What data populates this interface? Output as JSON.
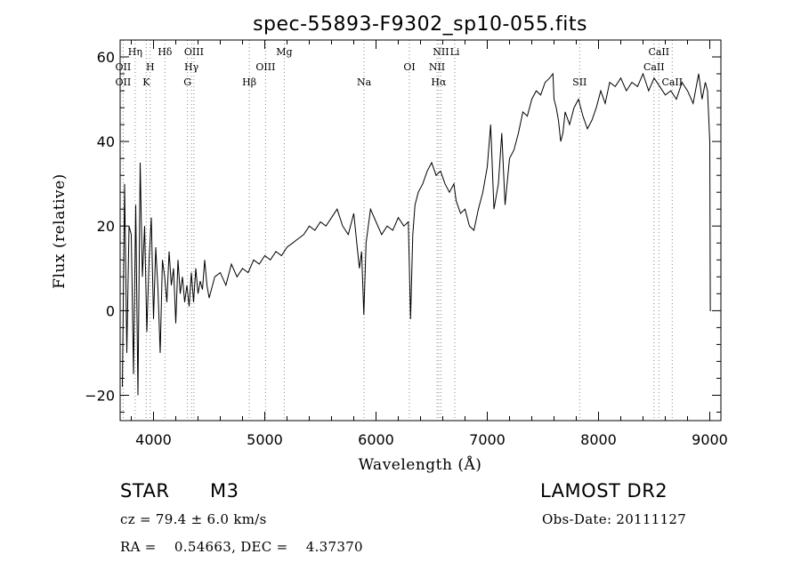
{
  "chart_data": {
    "type": "line",
    "title": "spec-55893-F9302_sp10-055.fits",
    "xlabel": "Wavelength (Å)",
    "ylabel": "Flux (relative)",
    "xlim": [
      3700,
      9100
    ],
    "ylim": [
      -26,
      64
    ],
    "xticks": [
      4000,
      5000,
      6000,
      7000,
      8000,
      9000
    ],
    "yticks": [
      -20,
      0,
      20,
      40,
      60
    ],
    "grid": false,
    "line_color": "#000000",
    "marker_color": "#888888",
    "lines": [
      {
        "label": "OII",
        "x": 3727,
        "row": 2
      },
      {
        "label": "OII",
        "x": 3727,
        "row": 3
      },
      {
        "label": "Hη",
        "x": 3835,
        "row": 1
      },
      {
        "label": "H",
        "x": 3970,
        "row": 2
      },
      {
        "label": "K",
        "x": 3934,
        "row": 3
      },
      {
        "label": "Hδ",
        "x": 4102,
        "row": 1
      },
      {
        "label": "OIII",
        "x": 4363,
        "row": 1
      },
      {
        "label": "Hγ",
        "x": 4341,
        "row": 2
      },
      {
        "label": "G",
        "x": 4305,
        "row": 3
      },
      {
        "label": "Mg",
        "x": 5175,
        "row": 1
      },
      {
        "label": "OIII",
        "x": 5007,
        "row": 2
      },
      {
        "label": "Hβ",
        "x": 4861,
        "row": 3
      },
      {
        "label": "Na",
        "x": 5893,
        "row": 3
      },
      {
        "label": "OI",
        "x": 6300,
        "row": 2
      },
      {
        "label": "NII",
        "x": 6583,
        "row": 1
      },
      {
        "label": "NII",
        "x": 6548,
        "row": 2
      },
      {
        "label": "Hα",
        "x": 6563,
        "row": 3
      },
      {
        "label": "Li",
        "x": 6708,
        "row": 1
      },
      {
        "label": "SII",
        "x": 7830,
        "row": 3
      },
      {
        "label": "CaII",
        "x": 8542,
        "row": 1
      },
      {
        "label": "CaII",
        "x": 8498,
        "row": 2
      },
      {
        "label": "CaII",
        "x": 8662,
        "row": 3
      }
    ],
    "series": [
      {
        "x": [
          3720,
          3740,
          3760,
          3780,
          3800,
          3820,
          3840,
          3860,
          3880,
          3900,
          3920,
          3940,
          3960,
          3980,
          4000,
          4020,
          4040,
          4060,
          4080,
          4100,
          4120,
          4140,
          4160,
          4180,
          4200,
          4220,
          4240,
          4260,
          4280,
          4300,
          4320,
          4340,
          4360,
          4380,
          4400,
          4420,
          4440,
          4460,
          4480,
          4500,
          4550,
          4600,
          4650,
          4700,
          4750,
          4800,
          4850,
          4900,
          4950,
          5000,
          5050,
          5100,
          5150,
          5200,
          5250,
          5300,
          5350,
          5400,
          5450,
          5500,
          5550,
          5600,
          5650,
          5700,
          5750,
          5800,
          5850,
          5870,
          5890,
          5910,
          5950,
          6000,
          6050,
          6100,
          6150,
          6200,
          6250,
          6290,
          6310,
          6330,
          6350,
          6380,
          6420,
          6460,
          6500,
          6540,
          6580,
          6620,
          6660,
          6700,
          6720,
          6760,
          6800,
          6840,
          6880,
          6920,
          6960,
          7000,
          7030,
          7060,
          7100,
          7130,
          7160,
          7200,
          7240,
          7280,
          7320,
          7360,
          7400,
          7440,
          7480,
          7520,
          7560,
          7590,
          7600,
          7620,
          7640,
          7660,
          7680,
          7700,
          7740,
          7780,
          7820,
          7860,
          7900,
          7940,
          7980,
          8020,
          8060,
          8100,
          8150,
          8200,
          8250,
          8300,
          8350,
          8400,
          8450,
          8500,
          8550,
          8600,
          8650,
          8700,
          8750,
          8800,
          8850,
          8900,
          8930,
          8960,
          8980,
          9000,
          9005,
          9010
        ],
        "y": [
          -18,
          30,
          -10,
          20,
          18,
          -15,
          25,
          -20,
          35,
          8,
          20,
          -5,
          12,
          22,
          -2,
          15,
          5,
          -10,
          12,
          8,
          2,
          14,
          6,
          10,
          -3,
          12,
          4,
          8,
          2,
          6,
          1,
          9,
          2,
          10,
          4,
          7,
          5,
          12,
          6,
          3,
          8,
          9,
          6,
          11,
          8,
          10,
          9,
          12,
          11,
          13,
          12,
          14,
          13,
          15,
          16,
          17,
          18,
          20,
          19,
          21,
          20,
          22,
          24,
          20,
          18,
          23,
          10,
          14,
          -1,
          16,
          24,
          21,
          18,
          20,
          19,
          22,
          20,
          21,
          -2,
          18,
          25,
          28,
          30,
          33,
          35,
          32,
          33,
          30,
          28,
          30,
          26,
          23,
          24,
          20,
          19,
          24,
          28,
          34,
          44,
          24,
          30,
          42,
          25,
          36,
          38,
          42,
          47,
          46,
          50,
          52,
          51,
          54,
          55,
          56,
          50,
          48,
          45,
          40,
          42,
          47,
          44,
          48,
          50,
          46,
          43,
          45,
          48,
          52,
          49,
          54,
          53,
          55,
          52,
          54,
          53,
          56,
          52,
          55,
          53,
          51,
          52,
          50,
          54,
          52,
          49,
          56,
          50,
          54,
          52,
          40,
          0,
          0
        ]
      }
    ]
  },
  "info": {
    "object_class": "STAR",
    "subclass": "M3",
    "survey": "LAMOST DR2",
    "cz": "cz = 79.4 ± 6.0 km/s",
    "obs_date": "Obs-Date: 20111127",
    "coords": "RA =    0.54663, DEC =    4.37370"
  }
}
